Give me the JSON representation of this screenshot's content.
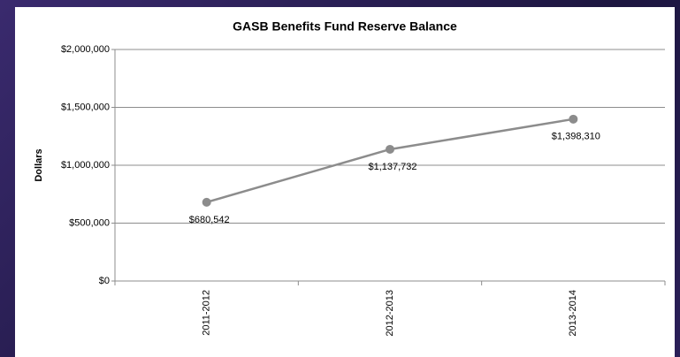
{
  "chart_data": {
    "type": "line",
    "title": "GASB Benefits Fund Reserve Balance",
    "y_label": "Dollars",
    "categories": [
      "2011-2012",
      "2012-2013",
      "2013-2014"
    ],
    "series": [
      {
        "name": "Reserve Balance",
        "color": "#8c8c8c",
        "values": [
          680542,
          1137732,
          1398310
        ],
        "value_labels": [
          "$680,542",
          "$1,137,732",
          "$1,398,310"
        ]
      }
    ],
    "ylim": [
      0,
      2000000
    ],
    "yticks": [
      {
        "value": 0,
        "label": "$0"
      },
      {
        "value": 500000,
        "label": "$500,000"
      },
      {
        "value": 1000000,
        "label": "$1,000,000"
      },
      {
        "value": 1500000,
        "label": "$1,500,000"
      },
      {
        "value": 2000000,
        "label": "$2,000,000"
      }
    ],
    "grid": true
  }
}
